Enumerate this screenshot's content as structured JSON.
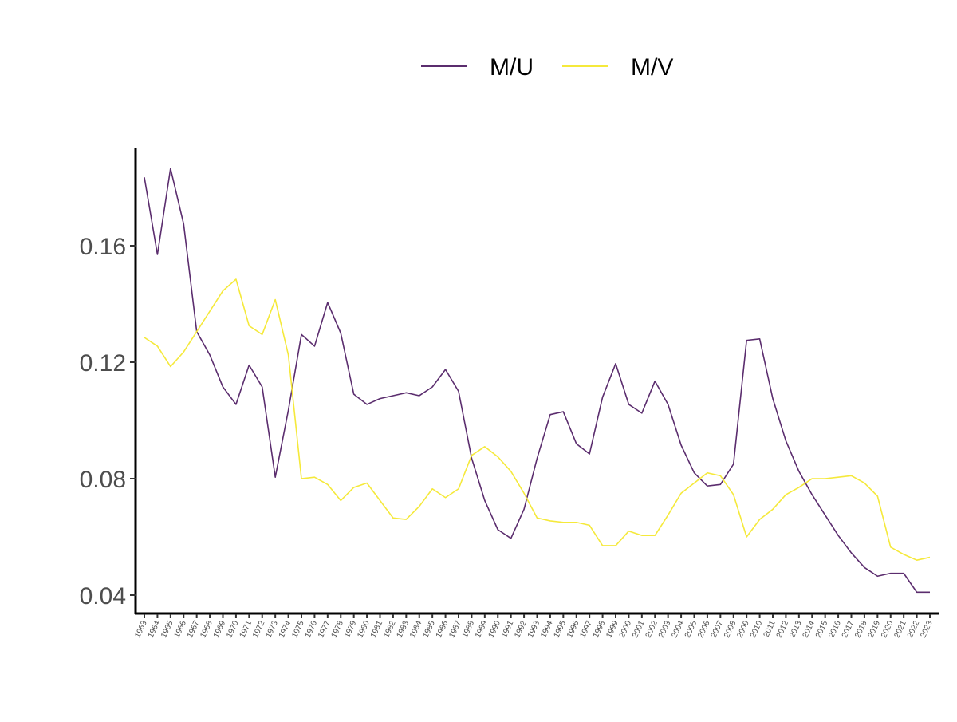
{
  "chart_data": {
    "type": "line",
    "title": "",
    "xlabel": "",
    "ylabel": "",
    "legend_position": "top",
    "grid": false,
    "ylim": [
      0.035,
      0.1955
    ],
    "yticks": [
      0.04,
      0.08,
      0.12,
      0.16
    ],
    "ytick_labels": [
      "0.04",
      "0.08",
      "0.12",
      "0.16"
    ],
    "x": [
      "1963",
      "1964",
      "1965",
      "1966",
      "1967",
      "1968",
      "1969",
      "1970",
      "1971",
      "1972",
      "1973",
      "1974",
      "1975",
      "1976",
      "1977",
      "1978",
      "1979",
      "1980",
      "1981",
      "1982",
      "1983",
      "1984",
      "1985",
      "1986",
      "1987",
      "1988",
      "1989",
      "1990",
      "1991",
      "1992",
      "1993",
      "1994",
      "1995",
      "1996",
      "1997",
      "1998",
      "1999",
      "2000",
      "2001",
      "2002",
      "2003",
      "2004",
      "2005",
      "2006",
      "2007",
      "2008",
      "2009",
      "2010",
      "2011",
      "2012",
      "2013",
      "2014",
      "2015",
      "2016",
      "2017",
      "2018",
      "2019",
      "2020",
      "2021",
      "2022",
      "2023"
    ],
    "series": [
      {
        "name": "M/U",
        "color": "#5b2d6e",
        "values": [
          0.1835,
          0.157,
          0.1865,
          0.1675,
          0.1305,
          0.1225,
          0.1115,
          0.1055,
          0.119,
          0.1115,
          0.0805,
          0.1035,
          0.1295,
          0.1255,
          0.1405,
          0.13,
          0.109,
          0.1055,
          0.1075,
          0.1085,
          0.1095,
          0.1085,
          0.1115,
          0.1175,
          0.11,
          0.087,
          0.0725,
          0.0625,
          0.0595,
          0.0695,
          0.087,
          0.102,
          0.103,
          0.092,
          0.0885,
          0.108,
          0.1195,
          0.1055,
          0.1025,
          0.1135,
          0.1055,
          0.0915,
          0.082,
          0.0775,
          0.078,
          0.085,
          0.1275,
          0.128,
          0.1075,
          0.093,
          0.0825,
          0.0745,
          0.0675,
          0.0605,
          0.0545,
          0.0495,
          0.0465,
          0.0475,
          0.0475,
          0.041,
          0.041
        ]
      },
      {
        "name": "M/V",
        "color": "#f5e93b",
        "values": [
          0.1285,
          0.1255,
          0.1185,
          0.1235,
          0.1305,
          0.1375,
          0.1445,
          0.1485,
          0.1325,
          0.1295,
          0.1415,
          0.1225,
          0.08,
          0.0805,
          0.078,
          0.0725,
          0.077,
          0.0785,
          0.0725,
          0.0665,
          0.066,
          0.0705,
          0.0765,
          0.0735,
          0.0765,
          0.088,
          0.091,
          0.0875,
          0.0825,
          0.075,
          0.0665,
          0.0655,
          0.065,
          0.065,
          0.064,
          0.057,
          0.057,
          0.062,
          0.0605,
          0.0605,
          0.0675,
          0.075,
          0.0785,
          0.082,
          0.081,
          0.0745,
          0.06,
          0.066,
          0.0695,
          0.0745,
          0.077,
          0.08,
          0.08,
          0.0805,
          0.081,
          0.0785,
          0.074,
          0.0565,
          0.054,
          0.052,
          0.053
        ]
      }
    ]
  }
}
